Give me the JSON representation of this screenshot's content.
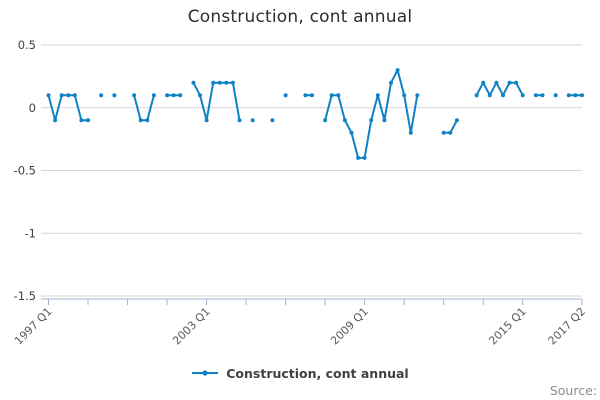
{
  "title": "Construction, cont annual",
  "legend": {
    "label": "Construction, cont annual"
  },
  "source_label": "Source:",
  "colors": {
    "line": "#0F82C5",
    "grid": "#d6d6d6",
    "axis": "#9FB2CC",
    "y_label_text": "#414042",
    "x_label_text": "#595959",
    "title_text": "#2e2e2e",
    "source_text": "#8c8c8c"
  },
  "chart_data": {
    "type": "line",
    "title": "Construction, cont annual",
    "series_name": "Construction, cont annual",
    "frequency": "quarterly",
    "x_start": "1997 Q1",
    "x_end": "2017 Q2",
    "ylim": [
      -1.5,
      0.5
    ],
    "grid": "horizontal-only",
    "legend_position": "bottom",
    "y_ticks": [
      {
        "label": "0.5",
        "value": 0.5
      },
      {
        "label": "0",
        "value": 0
      },
      {
        "label": "-0.5",
        "value": -0.5
      },
      {
        "label": "-1",
        "value": -1
      },
      {
        "label": "-1.5",
        "value": -1.5
      }
    ],
    "x_tick_labels": [
      {
        "label": "1997 Q1",
        "index": 0
      },
      {
        "label": "2003 Q1",
        "index": 24
      },
      {
        "label": "2009 Q1",
        "index": 48
      },
      {
        "label": "2015 Q1",
        "index": 72
      },
      {
        "label": "2017 Q2",
        "index": 81
      }
    ],
    "x_minor_tick_indices": [
      0,
      6,
      12,
      18,
      24,
      30,
      36,
      42,
      48,
      54,
      60,
      66,
      72,
      81
    ],
    "values": [
      0.1,
      -0.1,
      0.1,
      0.1,
      0.1,
      -0.1,
      -0.1,
      null,
      0.1,
      null,
      0.1,
      null,
      null,
      0.1,
      -0.1,
      -0.1,
      0.1,
      null,
      0.1,
      0.1,
      0.1,
      null,
      0.2,
      0.1,
      -0.1,
      0.2,
      0.2,
      0.2,
      0.2,
      -0.1,
      null,
      -0.1,
      null,
      null,
      -0.1,
      null,
      0.1,
      null,
      null,
      0.1,
      0.1,
      null,
      -0.1,
      0.1,
      0.1,
      -0.1,
      -0.2,
      -0.4,
      -0.4,
      -0.1,
      0.1,
      -0.1,
      0.2,
      0.3,
      0.1,
      -0.2,
      0.1,
      null,
      null,
      null,
      -0.2,
      -0.2,
      -0.1,
      null,
      null,
      0.1,
      0.2,
      0.1,
      0.2,
      0.1,
      0.2,
      0.2,
      0.1,
      null,
      0.1,
      0.1,
      null,
      0.1,
      null,
      0.1,
      0.1,
      0.1
    ]
  }
}
